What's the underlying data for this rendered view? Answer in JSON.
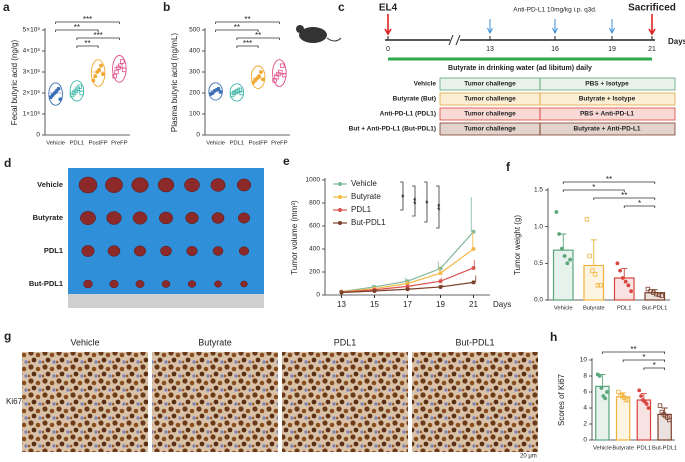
{
  "chart_data": [
    {
      "type": "violin",
      "label": "a",
      "ylabel": "Fecal butyric acid (ng/g)",
      "categories": [
        "Vehicle",
        "PDL1",
        "PostFP",
        "PreFP"
      ],
      "colors": [
        "#3b6fb6",
        "#3fb6a8",
        "#f0a830",
        "#e0508a"
      ],
      "values": [
        2000000,
        2100000,
        3000000,
        3200000
      ],
      "points": [
        [
          1800000,
          1900000,
          2000000,
          2100000,
          2200000,
          1700000
        ],
        [
          1900000,
          2000000,
          2100000,
          2200000,
          2300000,
          2000000
        ],
        [
          2600000,
          2800000,
          3000000,
          3100000,
          3300000,
          2900000
        ],
        [
          2800000,
          3000000,
          3200000,
          3300000,
          3500000,
          3100000
        ]
      ],
      "ylim": [
        0,
        5000000
      ],
      "yticks": [
        0,
        {
          "value": 1000000,
          "label": "1×10⁶"
        },
        {
          "value": 2000000,
          "label": "2×10⁶"
        },
        {
          "value": 3000000,
          "label": "3×10⁶"
        },
        {
          "value": 4000000,
          "label": "4×10⁶"
        },
        {
          "value": 5000000,
          "label": "5×10⁶"
        }
      ],
      "annotations": [
        {
          "from": "Vehicle",
          "to": "PreFP",
          "label": "***"
        },
        {
          "from": "Vehicle",
          "to": "PostFP",
          "label": "**"
        },
        {
          "from": "PDL1",
          "to": "PreFP",
          "label": "***"
        },
        {
          "from": "PDL1",
          "to": "PostFP",
          "label": "**"
        }
      ]
    },
    {
      "type": "violin",
      "label": "b",
      "ylabel": "Plasma butyric acid (ng/mL)",
      "categories": [
        "Vehicle",
        "PDL1",
        "PostFP",
        "PreFP"
      ],
      "colors": [
        "#3b6fb6",
        "#3fb6a8",
        "#f0a830",
        "#e0508a"
      ],
      "values": [
        210,
        205,
        270,
        290
      ],
      "points": [
        [
          195,
          200,
          210,
          215,
          220,
          205
        ],
        [
          190,
          200,
          205,
          210,
          215,
          200
        ],
        [
          250,
          260,
          270,
          280,
          300,
          265
        ],
        [
          260,
          275,
          290,
          300,
          330,
          285
        ]
      ],
      "ylim": [
        0,
        500
      ],
      "yticks": [
        0,
        100,
        200,
        300,
        400,
        500
      ],
      "annotations": [
        {
          "from": "Vehicle",
          "to": "PreFP",
          "label": "**"
        },
        {
          "from": "Vehicle",
          "to": "PostFP",
          "label": "**"
        },
        {
          "from": "PDL1",
          "to": "PreFP",
          "label": "**"
        },
        {
          "from": "PDL1",
          "to": "PostFP",
          "label": "***"
        }
      ]
    },
    {
      "type": "line",
      "label": "e",
      "ylabel": "Tumor volume (mm³)",
      "xlabel": "Days",
      "x": [
        13,
        15,
        17,
        19,
        21
      ],
      "xlim": [
        12,
        22
      ],
      "xticks": [
        13,
        15,
        17,
        19,
        21
      ],
      "ylim": [
        0,
        1000
      ],
      "yticks": [
        0,
        200,
        400,
        600,
        800,
        1000
      ],
      "series": [
        {
          "name": "Vehicle",
          "color": "#7fb89a",
          "values": [
            30,
            70,
            120,
            230,
            550
          ],
          "errors": [
            10,
            20,
            30,
            60,
            300
          ]
        },
        {
          "name": "Butyrate",
          "color": "#f5b94a",
          "values": [
            28,
            55,
            100,
            190,
            400
          ],
          "errors": [
            8,
            15,
            25,
            50,
            150
          ]
        },
        {
          "name": "PDL1",
          "color": "#d9534f",
          "values": [
            25,
            45,
            75,
            120,
            235
          ],
          "errors": [
            6,
            10,
            15,
            30,
            70
          ]
        },
        {
          "name": "But-PDL1",
          "color": "#7b3f2a",
          "values": [
            22,
            35,
            50,
            70,
            110
          ],
          "errors": [
            5,
            8,
            10,
            20,
            60
          ]
        }
      ],
      "annotations": [
        {
          "label": "*"
        },
        {
          "label": "**"
        },
        {
          "label": "*"
        },
        {
          "label": "**"
        }
      ]
    },
    {
      "type": "bar",
      "label": "f",
      "ylabel": "Tumor weight (g)",
      "categories": [
        "Vehicle",
        "Butyrate",
        "PDL1",
        "But-PDL1"
      ],
      "colors": [
        "#5aa57a",
        "#f2b33d",
        "#d9453c",
        "#7b3f2a"
      ],
      "values": [
        0.68,
        0.47,
        0.3,
        0.1
      ],
      "errors": [
        0.22,
        0.35,
        0.13,
        0.04
      ],
      "points": [
        [
          1.2,
          0.9,
          0.7,
          0.6,
          0.5,
          0.55
        ],
        [
          1.1,
          0.6,
          0.4,
          0.35,
          0.2,
          0.2
        ],
        [
          0.5,
          0.4,
          0.3,
          0.25,
          0.2,
          0.12
        ],
        [
          0.15,
          0.12,
          0.1,
          0.08,
          0.07,
          0.06
        ]
      ],
      "ylim": [
        0,
        1.5
      ],
      "yticks": [
        {
          "value": 0,
          "label": "0.0"
        },
        {
          "value": 0.5,
          "label": "0.5"
        },
        {
          "value": 1,
          "label": "1.0"
        },
        {
          "value": 1.5,
          "label": "1.5"
        }
      ],
      "annotations": [
        {
          "from": "Vehicle",
          "to": "But-PDL1",
          "label": "**"
        },
        {
          "from": "Vehicle",
          "to": "PDL1",
          "label": "*"
        },
        {
          "from": "Butyrate",
          "to": "But-PDL1",
          "label": "**"
        },
        {
          "from": "PDL1",
          "to": "But-PDL1",
          "label": "*"
        }
      ]
    },
    {
      "type": "bar",
      "label": "h",
      "ylabel": "Scores of Ki67",
      "categories": [
        "Vehicle",
        "Butyrate",
        "PDL1",
        "But-PDL1"
      ],
      "colors": [
        "#5aa57a",
        "#f2b33d",
        "#d9453c",
        "#7b3f2a"
      ],
      "values": [
        6.7,
        5.4,
        5.0,
        3.2
      ],
      "errors": [
        1.5,
        0.5,
        0.8,
        0.8
      ],
      "points": [
        [
          8.2,
          8.0,
          6.5,
          5.5,
          5.2,
          6.0
        ],
        [
          6.0,
          5.6,
          5.5,
          5.3,
          5.0,
          5.0
        ],
        [
          6.2,
          5.5,
          5.0,
          4.8,
          4.5,
          4.0
        ],
        [
          4.3,
          3.5,
          3.2,
          3.0,
          2.8,
          2.5
        ]
      ],
      "ylim": [
        0,
        10
      ],
      "yticks": [
        0,
        2,
        4,
        6,
        8,
        10
      ],
      "annotations": [
        {
          "from": "Vehicle",
          "to": "But-PDL1",
          "label": "**"
        },
        {
          "from": "Butyrate",
          "to": "But-PDL1",
          "label": "*"
        },
        {
          "from": "PDL1",
          "to": "But-PDL1",
          "label": "*"
        }
      ]
    }
  ],
  "diagram": {
    "label": "c",
    "start": "EL4",
    "end": "Sacrificed",
    "treatment": "Anti-PD-L1 10mg/kg i.p. q3d.",
    "unit": "Days",
    "days": [
      0,
      13,
      16,
      19,
      21
    ],
    "diet": "Butyrate in drinking water (ad libitum) daily",
    "rows": [
      [
        "Vehicle",
        "Tumor challenge",
        "PBS + Isotype"
      ],
      [
        "Butyrate (But)",
        "Tumor challenge",
        "Butyrate + Isotype"
      ],
      [
        "Anti-PD-L1 (PDL1)",
        "Tumor challenge",
        "PBS + Anti-PD-L1"
      ],
      [
        "But + Anti-PD-L1 (But-PDL1)",
        "Tumor challenge",
        "Butyrate + Anti-PD-L1"
      ]
    ]
  },
  "tumor_photo": {
    "label": "d",
    "rows": [
      "Vehicle",
      "Butyrate",
      "PDL1",
      "But-PDL1"
    ]
  },
  "histology": {
    "label": "g",
    "stain": "Ki67",
    "groups": [
      "Vehicle",
      "Butyrate",
      "PDL1",
      "But-PDL1"
    ],
    "scale": "20 μm"
  }
}
